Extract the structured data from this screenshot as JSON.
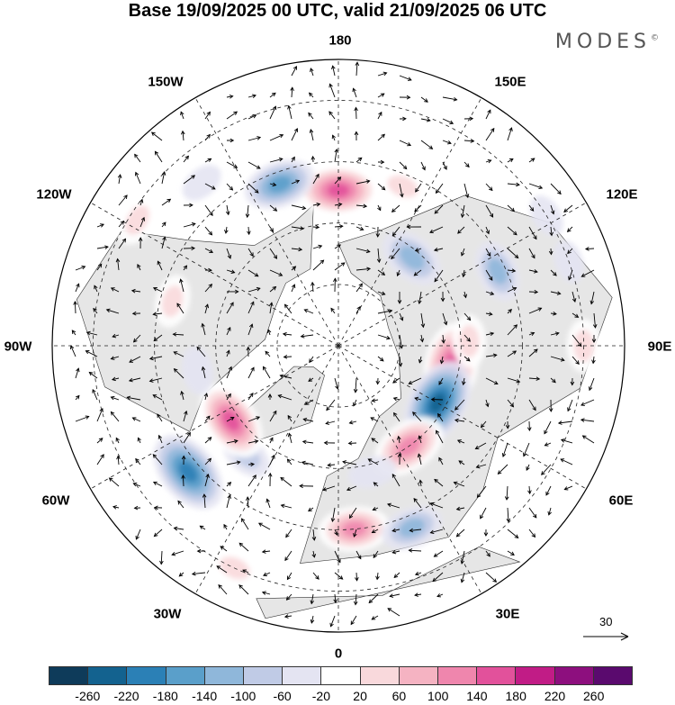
{
  "title": "Base 19/09/2025 00 UTC, valid 21/09/2025 06 UTC",
  "brand": "MODES",
  "brand_mark": "©",
  "longitude_labels": [
    "180",
    "150E",
    "120E",
    "90E",
    "60E",
    "30E",
    "0",
    "30W",
    "60W",
    "90W",
    "120W",
    "150W"
  ],
  "colorbar": {
    "ticks": [
      "-260",
      "-220",
      "-180",
      "-140",
      "-100",
      "-60",
      "-20",
      "20",
      "60",
      "100",
      "140",
      "180",
      "220",
      "260"
    ],
    "colors": [
      "#0e3b5a",
      "#13628f",
      "#2b80b6",
      "#5a9fca",
      "#8fb7da",
      "#c0cbe6",
      "#e4e4f2",
      "#ffffff",
      "#f9d9dc",
      "#f5b3c2",
      "#ef86ad",
      "#e2519b",
      "#c11c86",
      "#8d0f7e",
      "#5a0a6e"
    ]
  },
  "reference_vector": "30",
  "anomaly_blobs": [
    {
      "lon": 180,
      "lat": 52,
      "value": 180
    },
    {
      "lon": 158,
      "lat": 48,
      "value": 60
    },
    {
      "lon": -160,
      "lat": 48,
      "value": -140
    },
    {
      "lon": -140,
      "lat": 38,
      "value": -20
    },
    {
      "lon": -122,
      "lat": 32,
      "value": 60
    },
    {
      "lon": -105,
      "lat": 48,
      "value": 60
    },
    {
      "lon": 140,
      "lat": 62,
      "value": -120
    },
    {
      "lon": 115,
      "lat": 47,
      "value": -100
    },
    {
      "lon": 122,
      "lat": 30,
      "value": -20
    },
    {
      "lon": 80,
      "lat": 62,
      "value": 200
    },
    {
      "lon": 92,
      "lat": 58,
      "value": 60
    },
    {
      "lon": 60,
      "lat": 62,
      "value": -220
    },
    {
      "lon": 35,
      "lat": 60,
      "value": 160
    },
    {
      "lon": 15,
      "lat": 58,
      "value": -40
    },
    {
      "lon": 5,
      "lat": 45,
      "value": 140
    },
    {
      "lon": 22,
      "lat": 42,
      "value": -100
    },
    {
      "lon": -25,
      "lat": 30,
      "value": 60
    },
    {
      "lon": -50,
      "lat": 42,
      "value": -200
    },
    {
      "lon": -40,
      "lat": 55,
      "value": -60
    },
    {
      "lon": -55,
      "lat": 58,
      "value": 180
    },
    {
      "lon": -80,
      "lat": 55,
      "value": -40
    },
    {
      "lon": 110,
      "lat": 30,
      "value": -20
    },
    {
      "lon": 90,
      "lat": 30,
      "value": 60
    }
  ]
}
